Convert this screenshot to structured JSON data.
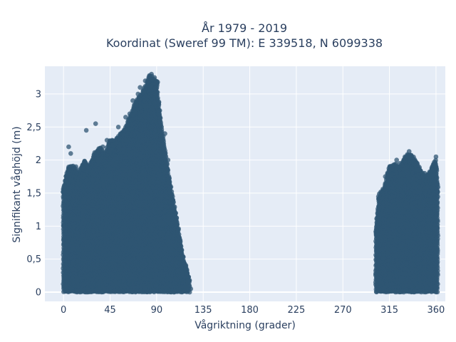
{
  "chart_data": {
    "type": "scatter",
    "title_line1": "År 1979 - 2019",
    "title_line2": "Koordinat (Sweref 99 TM): E 339518, N 6099338",
    "xlabel": "Vågriktning (grader)",
    "ylabel": "Signifikant våghöjd (m)",
    "xlim": [
      -18,
      369
    ],
    "ylim": [
      -0.14,
      3.42
    ],
    "x_ticks": [
      0,
      45,
      90,
      135,
      180,
      225,
      270,
      315,
      360
    ],
    "y_ticks": [
      0,
      0.5,
      1,
      1.5,
      2,
      2.5,
      3
    ],
    "x_tick_labels": [
      "0",
      "45",
      "90",
      "135",
      "180",
      "225",
      "270",
      "315",
      "360"
    ],
    "y_tick_labels": [
      "0",
      "0,5",
      "1",
      "1,5",
      "2",
      "2,5",
      "3"
    ],
    "grid": true,
    "marker_color": "#2f5573",
    "background_color": "#e5ecf6",
    "clusters": [
      {
        "x_range": [
          0,
          122
        ],
        "envelope": [
          [
            0,
            1.6
          ],
          [
            5,
            1.9
          ],
          [
            10,
            1.9
          ],
          [
            15,
            1.8
          ],
          [
            20,
            2.0
          ],
          [
            25,
            1.9
          ],
          [
            30,
            2.1
          ],
          [
            35,
            2.2
          ],
          [
            40,
            2.1
          ],
          [
            45,
            2.3
          ],
          [
            50,
            2.3
          ],
          [
            55,
            2.4
          ],
          [
            60,
            2.5
          ],
          [
            65,
            2.7
          ],
          [
            70,
            2.9
          ],
          [
            75,
            3.0
          ],
          [
            80,
            3.15
          ],
          [
            83,
            3.3
          ],
          [
            87,
            3.25
          ],
          [
            90,
            3.2
          ],
          [
            93,
            2.7
          ],
          [
            97,
            2.3
          ],
          [
            100,
            1.95
          ],
          [
            103,
            1.65
          ],
          [
            107,
            1.3
          ],
          [
            110,
            1.05
          ],
          [
            113,
            0.75
          ],
          [
            116,
            0.5
          ],
          [
            119,
            0.35
          ],
          [
            122,
            0.15
          ]
        ]
      },
      {
        "x_range": [
          302,
          362
        ],
        "envelope": [
          [
            302,
            1.0
          ],
          [
            305,
            1.5
          ],
          [
            310,
            1.6
          ],
          [
            315,
            1.9
          ],
          [
            320,
            1.95
          ],
          [
            325,
            1.9
          ],
          [
            330,
            2.05
          ],
          [
            335,
            2.1
          ],
          [
            340,
            2.0
          ],
          [
            345,
            1.85
          ],
          [
            350,
            1.75
          ],
          [
            355,
            1.85
          ],
          [
            360,
            2.05
          ],
          [
            362,
            1.5
          ]
        ]
      }
    ],
    "outliers": [
      [
        1,
        1.6
      ],
      [
        3,
        1.7
      ],
      [
        5,
        2.2
      ],
      [
        7,
        2.1
      ],
      [
        12,
        1.9
      ],
      [
        15,
        1.85
      ],
      [
        22,
        2.45
      ],
      [
        31,
        2.55
      ],
      [
        35,
        2.0
      ],
      [
        38,
        2.2
      ],
      [
        42,
        2.3
      ],
      [
        47,
        2.3
      ],
      [
        53,
        2.5
      ],
      [
        60,
        2.65
      ],
      [
        64,
        2.7
      ],
      [
        67,
        2.9
      ],
      [
        70,
        2.85
      ],
      [
        72,
        3.0
      ],
      [
        74,
        3.1
      ],
      [
        77,
        3.05
      ],
      [
        79,
        3.2
      ],
      [
        81,
        3.18
      ],
      [
        83,
        3.28
      ],
      [
        85,
        3.3
      ],
      [
        86,
        3.22
      ],
      [
        88,
        3.25
      ],
      [
        91,
        3.18
      ],
      [
        93,
        2.75
      ],
      [
        98,
        2.4
      ],
      [
        101,
        2.0
      ],
      [
        123,
        0.05
      ],
      [
        311,
        1.75
      ],
      [
        315,
        1.85
      ],
      [
        318,
        1.9
      ],
      [
        322,
        2.0
      ],
      [
        325,
        1.95
      ],
      [
        330,
        2.05
      ],
      [
        334,
        2.13
      ],
      [
        338,
        2.0
      ],
      [
        343,
        1.85
      ],
      [
        349,
        1.8
      ],
      [
        352,
        1.75
      ],
      [
        356,
        1.85
      ],
      [
        360,
        2.05
      ]
    ]
  }
}
